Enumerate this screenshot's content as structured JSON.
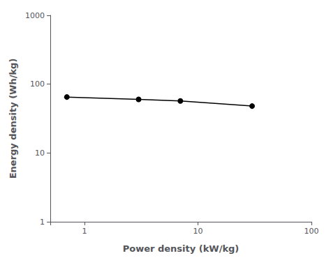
{
  "chart_data": {
    "type": "line",
    "x": [
      0.7,
      3.0,
      7.0,
      30.0
    ],
    "values": [
      65,
      60,
      57,
      48
    ],
    "color": "#000000",
    "marker": "circle",
    "xlabel": "Power density (kW/kg)",
    "ylabel": "Energy density (Wh/kg)",
    "xlim": [
      0.5,
      100
    ],
    "ylim": [
      1,
      1000
    ],
    "xticks": [
      1,
      10,
      100
    ],
    "yticks": [
      1,
      10,
      100,
      1000
    ],
    "log": true,
    "grid": false
  }
}
